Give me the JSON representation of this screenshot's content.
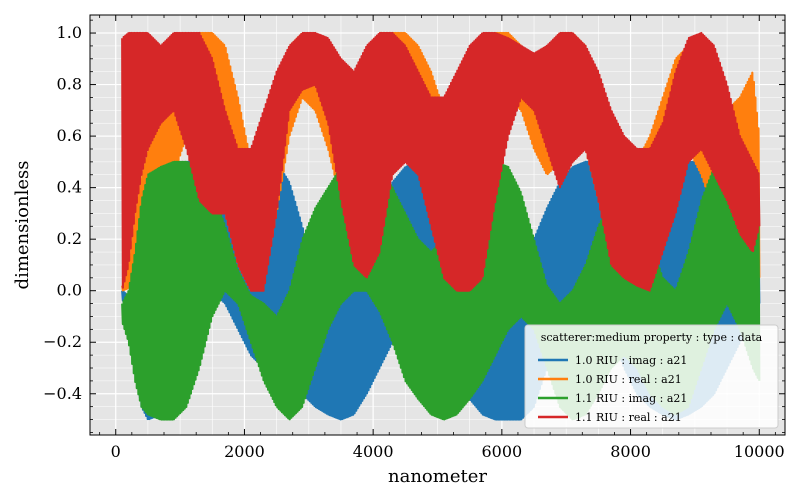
{
  "chart_data": {
    "type": "area",
    "title": "",
    "xlabel": "nanometer",
    "ylabel": "dimensionless",
    "xlim": [
      -400,
      10400
    ],
    "ylim": [
      -0.56,
      1.07
    ],
    "xticks": [
      0,
      2000,
      4000,
      6000,
      8000,
      10000
    ],
    "xtick_labels": [
      "0",
      "2000",
      "4000",
      "6000",
      "8000",
      "10000"
    ],
    "yticks": [
      -0.4,
      -0.2,
      0.0,
      0.2,
      0.4,
      0.6,
      0.8,
      1.0
    ],
    "ytick_labels": [
      "−0.4",
      "−0.2",
      "0.0",
      "0.2",
      "0.4",
      "0.6",
      "0.8",
      "1.0"
    ],
    "grid": true,
    "legend": {
      "title": "scatterer:medium property : type : data",
      "placement": "lower-right"
    },
    "series": [
      {
        "name": "1.0 RIU : imag : a21",
        "color": "#1f77b4",
        "x": [
          100,
          200,
          300,
          400,
          500,
          700,
          900,
          1100,
          1300,
          1500,
          1700,
          1900,
          2100,
          2300,
          2500,
          2700,
          2900,
          3100,
          3300,
          3500,
          3700,
          3900,
          4100,
          4300,
          4500,
          4700,
          4900,
          5100,
          5300,
          5500,
          5700,
          5900,
          6100,
          6300,
          6500,
          6700,
          6900,
          7100,
          7300,
          7500,
          7700,
          7900,
          8100,
          8300,
          8500,
          8700,
          8900,
          9100,
          9300,
          9500,
          9700,
          9900,
          10000
        ],
        "upper": [
          0.0,
          -0.02,
          0.05,
          0.15,
          0.28,
          0.42,
          0.48,
          0.5,
          0.5,
          0.48,
          0.4,
          0.3,
          0.4,
          0.48,
          0.5,
          0.42,
          0.25,
          0.05,
          -0.05,
          -0.05,
          0.0,
          0.15,
          0.32,
          0.42,
          0.48,
          0.5,
          0.5,
          0.45,
          0.35,
          0.2,
          0.05,
          -0.05,
          -0.08,
          0.0,
          0.2,
          0.32,
          0.42,
          0.48,
          0.5,
          0.5,
          0.45,
          0.4,
          0.35,
          0.3,
          0.38,
          0.45,
          0.5,
          0.5,
          0.45,
          0.35,
          0.25,
          0.15,
          0.2
        ],
        "lower": [
          -0.03,
          -0.1,
          -0.3,
          -0.45,
          -0.5,
          -0.48,
          -0.35,
          -0.2,
          -0.05,
          0.0,
          -0.05,
          -0.15,
          -0.25,
          -0.3,
          -0.32,
          -0.35,
          -0.4,
          -0.45,
          -0.48,
          -0.5,
          -0.48,
          -0.4,
          -0.3,
          -0.2,
          -0.1,
          -0.05,
          -0.1,
          -0.25,
          -0.35,
          -0.42,
          -0.48,
          -0.5,
          -0.5,
          -0.5,
          -0.45,
          -0.3,
          -0.15,
          -0.05,
          0.0,
          -0.05,
          -0.15,
          -0.3,
          -0.4,
          -0.45,
          -0.48,
          -0.5,
          -0.48,
          -0.45,
          -0.4,
          -0.3,
          -0.2,
          -0.1,
          -0.05
        ]
      },
      {
        "name": "1.0 RIU : real : a21",
        "color": "#ff7f0e",
        "x": [
          100,
          200,
          300,
          400,
          500,
          700,
          900,
          1100,
          1300,
          1500,
          1700,
          1900,
          2100,
          2300,
          2500,
          2700,
          2900,
          3100,
          3300,
          3500,
          3700,
          3900,
          4100,
          4300,
          4500,
          4700,
          4900,
          5100,
          5300,
          5500,
          5700,
          5900,
          6100,
          6300,
          6500,
          6700,
          6900,
          7100,
          7300,
          7500,
          7700,
          7900,
          8100,
          8300,
          8500,
          8700,
          8900,
          9100,
          9300,
          9500,
          9700,
          9900,
          10000
        ],
        "upper": [
          0.02,
          0.1,
          0.3,
          0.45,
          0.55,
          0.75,
          0.9,
          0.98,
          1.0,
          1.0,
          0.95,
          0.75,
          0.5,
          0.45,
          0.7,
          0.95,
          1.0,
          0.98,
          0.85,
          0.72,
          0.8,
          0.92,
          1.0,
          1.0,
          1.0,
          0.95,
          0.85,
          0.7,
          0.6,
          0.75,
          0.95,
          1.0,
          1.0,
          0.95,
          0.9,
          0.92,
          1.0,
          1.0,
          0.95,
          0.8,
          0.65,
          0.55,
          0.5,
          0.6,
          0.75,
          0.9,
          0.95,
          0.9,
          0.8,
          0.7,
          0.75,
          0.85,
          0.6
        ],
        "lower": [
          0.0,
          0.01,
          0.05,
          0.1,
          0.15,
          0.3,
          0.45,
          0.6,
          0.65,
          0.55,
          0.3,
          0.1,
          0.0,
          0.05,
          0.3,
          0.6,
          0.75,
          0.7,
          0.55,
          0.35,
          0.2,
          0.25,
          0.45,
          0.65,
          0.7,
          0.6,
          0.35,
          0.15,
          0.05,
          0.15,
          0.4,
          0.65,
          0.75,
          0.7,
          0.55,
          0.45,
          0.5,
          0.65,
          0.55,
          0.35,
          0.15,
          0.05,
          0.0,
          0.05,
          0.25,
          0.45,
          0.55,
          0.45,
          0.3,
          0.15,
          0.05,
          0.02,
          0.05
        ]
      },
      {
        "name": "1.1 RIU : imag : a21",
        "color": "#2ca02c",
        "x": [
          100,
          200,
          300,
          400,
          500,
          700,
          900,
          1100,
          1300,
          1500,
          1700,
          1900,
          2100,
          2300,
          2500,
          2700,
          2900,
          3100,
          3300,
          3500,
          3700,
          3900,
          4100,
          4300,
          4500,
          4700,
          4900,
          5100,
          5300,
          5500,
          5700,
          5900,
          6100,
          6300,
          6500,
          6700,
          6900,
          7100,
          7300,
          7500,
          7700,
          7900,
          8100,
          8300,
          8500,
          8700,
          8900,
          9100,
          9300,
          9500,
          9700,
          9900,
          10000
        ],
        "upper": [
          -0.05,
          0.0,
          0.15,
          0.35,
          0.45,
          0.48,
          0.5,
          0.5,
          0.48,
          0.4,
          0.25,
          0.08,
          -0.02,
          -0.05,
          -0.1,
          0.0,
          0.2,
          0.32,
          0.4,
          0.48,
          0.5,
          0.5,
          0.48,
          0.4,
          0.3,
          0.2,
          0.15,
          0.2,
          0.32,
          0.42,
          0.48,
          0.5,
          0.48,
          0.38,
          0.2,
          0.02,
          -0.05,
          0.0,
          0.1,
          0.25,
          0.35,
          0.42,
          0.4,
          0.2,
          0.05,
          0.0,
          0.15,
          0.35,
          0.48,
          0.5,
          0.45,
          0.35,
          0.3
        ],
        "lower": [
          -0.12,
          -0.2,
          -0.35,
          -0.45,
          -0.48,
          -0.5,
          -0.5,
          -0.45,
          -0.3,
          -0.1,
          0.0,
          -0.05,
          -0.2,
          -0.35,
          -0.45,
          -0.5,
          -0.45,
          -0.3,
          -0.15,
          -0.05,
          0.0,
          0.0,
          -0.08,
          -0.2,
          -0.35,
          -0.42,
          -0.48,
          -0.5,
          -0.48,
          -0.42,
          -0.35,
          -0.25,
          -0.15,
          -0.1,
          -0.15,
          -0.3,
          -0.45,
          -0.5,
          -0.48,
          -0.4,
          -0.3,
          -0.25,
          -0.3,
          -0.4,
          -0.45,
          -0.48,
          -0.45,
          -0.3,
          -0.15,
          -0.05,
          -0.15,
          -0.3,
          -0.35
        ]
      },
      {
        "name": "1.1 RIU : real : a21",
        "color": "#d62728",
        "x": [
          100,
          200,
          300,
          400,
          500,
          700,
          900,
          1100,
          1300,
          1500,
          1700,
          1900,
          2100,
          2300,
          2500,
          2700,
          2900,
          3100,
          3300,
          3500,
          3700,
          3900,
          4100,
          4300,
          4500,
          4700,
          4900,
          5100,
          5300,
          5500,
          5700,
          5900,
          6100,
          6300,
          6500,
          6700,
          6900,
          7100,
          7300,
          7500,
          7700,
          7900,
          8100,
          8300,
          8500,
          8700,
          8900,
          9100,
          9300,
          9500,
          9700,
          9900,
          10000
        ],
        "upper": [
          0.98,
          1.0,
          1.0,
          1.0,
          1.0,
          0.95,
          1.0,
          1.0,
          1.0,
          0.9,
          0.7,
          0.55,
          0.55,
          0.7,
          0.85,
          0.95,
          1.0,
          1.0,
          0.98,
          0.9,
          0.85,
          0.95,
          1.0,
          1.0,
          0.95,
          0.85,
          0.75,
          0.75,
          0.85,
          0.95,
          1.0,
          1.0,
          0.98,
          0.95,
          0.92,
          0.95,
          1.0,
          1.0,
          0.95,
          0.85,
          0.7,
          0.6,
          0.55,
          0.55,
          0.65,
          0.85,
          0.98,
          1.0,
          0.95,
          0.8,
          0.6,
          0.5,
          0.45
        ],
        "lower": [
          0.0,
          0.1,
          0.3,
          0.45,
          0.55,
          0.65,
          0.7,
          0.55,
          0.35,
          0.3,
          0.3,
          0.1,
          0.0,
          0.0,
          0.3,
          0.7,
          0.78,
          0.8,
          0.65,
          0.35,
          0.1,
          0.05,
          0.15,
          0.45,
          0.5,
          0.45,
          0.25,
          0.05,
          0.0,
          0.0,
          0.05,
          0.35,
          0.6,
          0.75,
          0.7,
          0.55,
          0.4,
          0.5,
          0.55,
          0.35,
          0.1,
          0.05,
          0.02,
          0.0,
          0.15,
          0.3,
          0.5,
          0.55,
          0.45,
          0.35,
          0.22,
          0.15,
          0.25
        ]
      }
    ]
  }
}
